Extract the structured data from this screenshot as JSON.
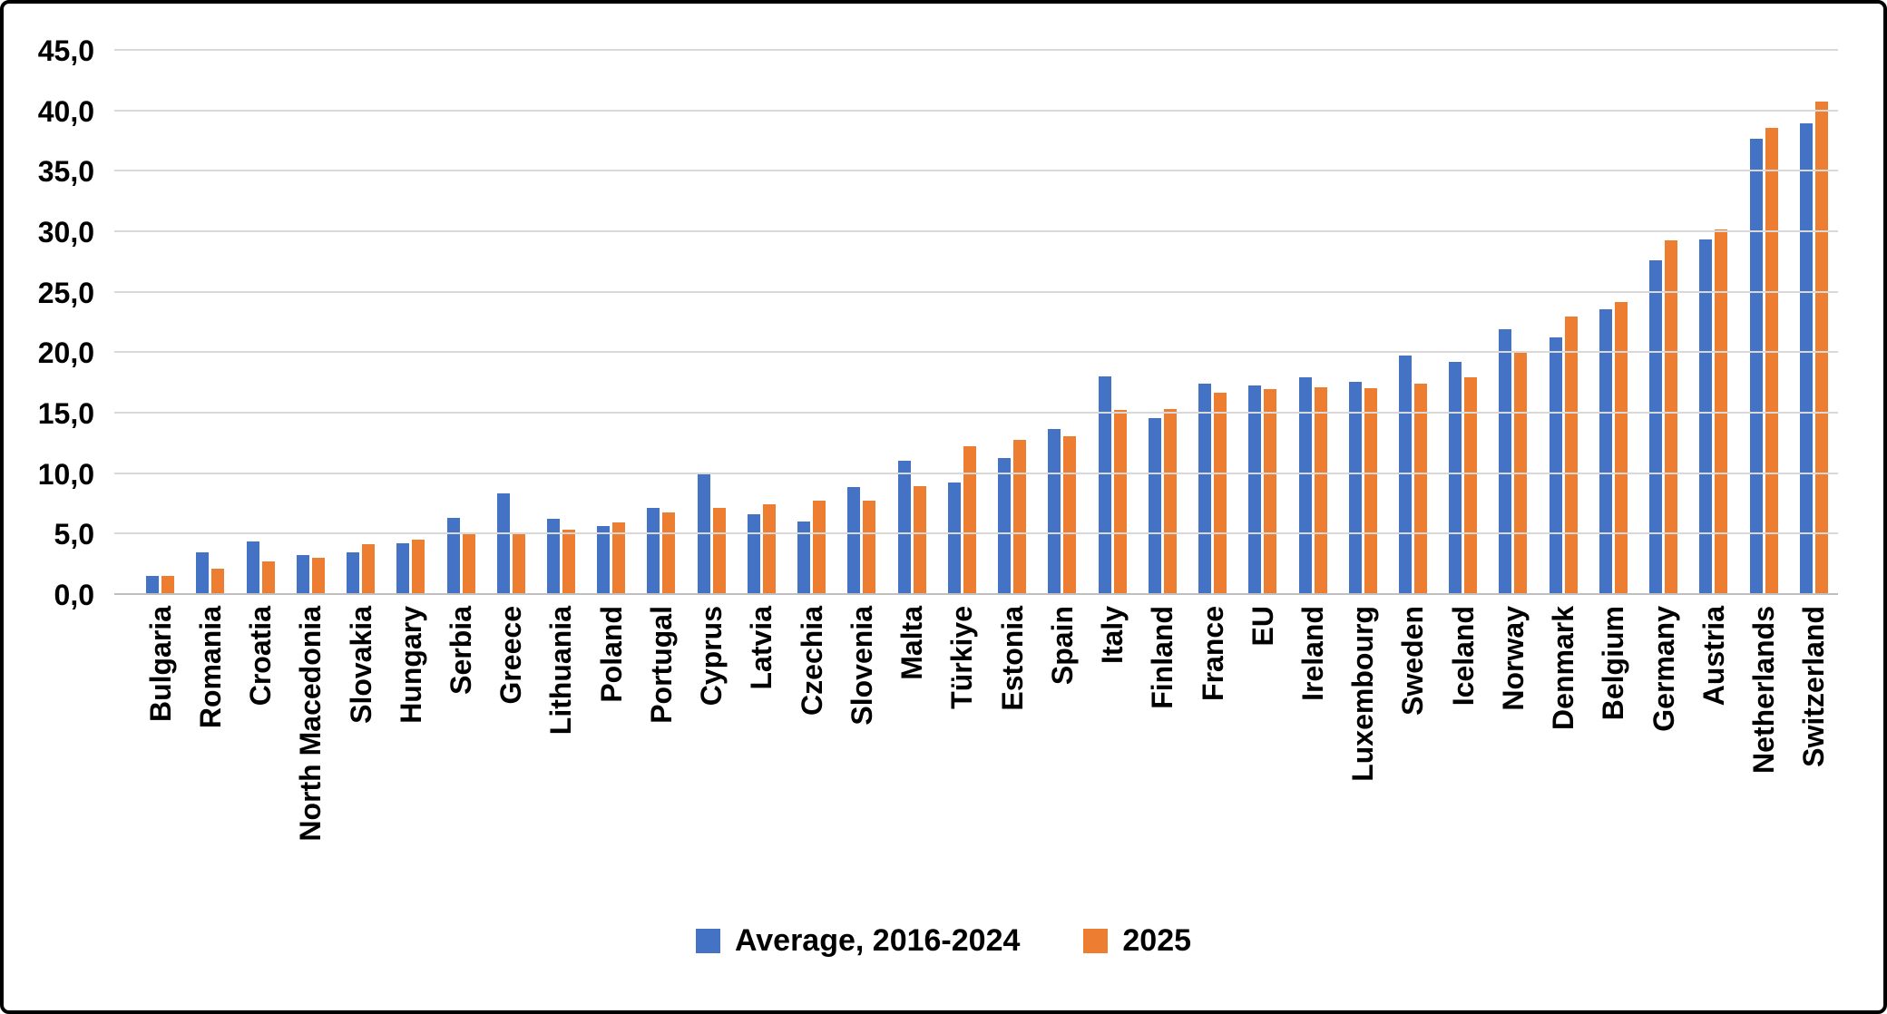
{
  "chart_data": {
    "type": "bar",
    "title": "",
    "xlabel": "",
    "ylabel": "",
    "ylim": [
      0,
      45
    ],
    "ytick_step": 5,
    "ytick_labels": [
      "0,0",
      "5,0",
      "10,0",
      "15,0",
      "20,0",
      "25,0",
      "30,0",
      "35,0",
      "40,0",
      "45,0"
    ],
    "grid": true,
    "legend_position": "bottom",
    "categories": [
      "Bulgaria",
      "Romania",
      "Croatia",
      "North Macedonia",
      "Slovakia",
      "Hungary",
      "Serbia",
      "Greece",
      "Lithuania",
      "Poland",
      "Portugal",
      "Cyprus",
      "Latvia",
      "Czechia",
      "Slovenia",
      "Malta",
      "Türkiye",
      "Estonia",
      "Spain",
      "Italy",
      "Finland",
      "France",
      "EU",
      "Ireland",
      "Luxembourg",
      "Sweden",
      "Iceland",
      "Norway",
      "Denmark",
      "Belgium",
      "Germany",
      "Austria",
      "Netherlands",
      "Switzerland"
    ],
    "series": [
      {
        "name": "Average, 2016-2024",
        "color": "#4472C4",
        "values": [
          1.6,
          3.5,
          4.4,
          3.3,
          3.5,
          4.3,
          6.4,
          8.4,
          6.3,
          5.7,
          7.2,
          10.1,
          6.7,
          6.1,
          8.9,
          11.1,
          9.3,
          11.3,
          13.7,
          18.1,
          14.6,
          17.5,
          17.3,
          18.0,
          17.6,
          19.8,
          19.3,
          22.0,
          21.3,
          23.6,
          27.7,
          29.4,
          37.7,
          39.0
        ]
      },
      {
        "name": "2025",
        "color": "#ED7D31",
        "values": [
          1.6,
          2.2,
          2.8,
          3.1,
          4.2,
          4.6,
          5.0,
          5.1,
          5.4,
          6.0,
          6.8,
          7.2,
          7.5,
          7.8,
          7.8,
          9.0,
          12.3,
          12.8,
          13.1,
          15.3,
          15.4,
          16.7,
          17.0,
          17.2,
          17.1,
          17.5,
          18.0,
          20.1,
          23.0,
          24.2,
          29.3,
          30.2,
          38.6,
          40.8
        ]
      }
    ]
  },
  "legend": {
    "series1_label": "Average, 2016-2024",
    "series2_label": "2025"
  },
  "colors": {
    "series1": "#4472C4",
    "series2": "#ED7D31",
    "gridline": "#d9d9d9",
    "frame_border": "#000000",
    "background": "#ffffff"
  }
}
